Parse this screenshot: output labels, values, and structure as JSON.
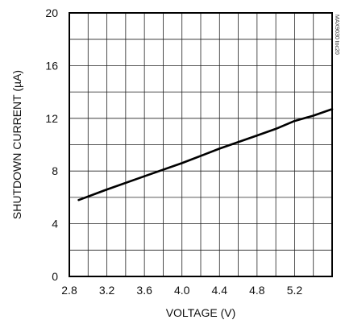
{
  "chart_data": {
    "type": "line",
    "xlabel": "VOLTAGE (V)",
    "ylabel": "SHUTDOWN CURRENT (µA)",
    "xlim": [
      2.8,
      5.6
    ],
    "ylim": [
      0,
      20
    ],
    "xticks": [
      2.8,
      3.2,
      3.6,
      4.0,
      4.4,
      4.8,
      5.2
    ],
    "xtick_labels": [
      "2.8",
      "3.2",
      "3.6",
      "4.0",
      "4.4",
      "4.8",
      "5.2"
    ],
    "yticks": [
      0,
      4,
      8,
      12,
      16,
      20
    ],
    "ytick_labels": [
      "0",
      "4",
      "8",
      "12",
      "16",
      "20"
    ],
    "grid": true,
    "series": [
      {
        "x": [
          2.9,
          3.2,
          3.6,
          4.0,
          4.4,
          4.8,
          5.0,
          5.2,
          5.4,
          5.6
        ],
        "y": [
          5.8,
          6.6,
          7.6,
          8.6,
          9.7,
          10.7,
          11.2,
          11.8,
          12.2,
          12.7
        ]
      }
    ],
    "annotation": "MAX9030 toc20"
  }
}
